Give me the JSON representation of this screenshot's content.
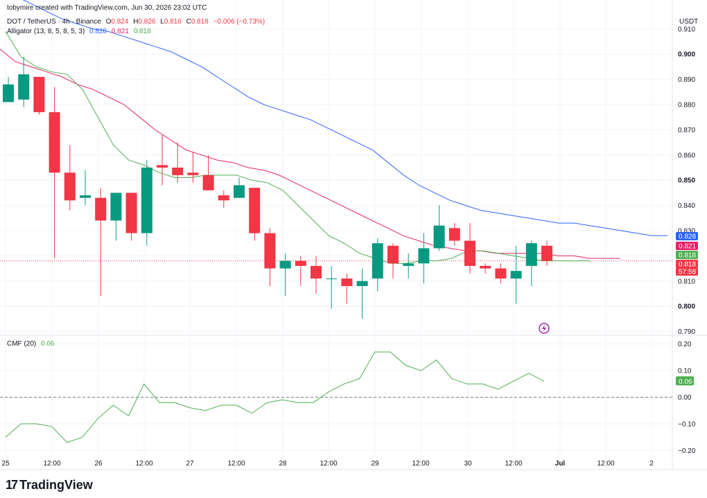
{
  "attribution": "tobymire created with TradingView.com, Jun 30, 2026 23:02 UTC",
  "symbol": "DOT / TetherUS · 4h · Binance",
  "ohlc": {
    "o_label": "O",
    "o": "0.824",
    "h_label": "H",
    "h": "0.826",
    "l_label": "L",
    "l": "0.816",
    "c_label": "C",
    "c": "0.818",
    "chg": "−0.006 (−0.73%)"
  },
  "alligator": {
    "label": "Alligator (13, 8, 5, 8, 5, 3)",
    "jaw": "0.828",
    "teeth": "0.821",
    "lips": "0.818"
  },
  "cmf": {
    "label": "CMF (20)",
    "value": "0.06"
  },
  "currency": "USDT",
  "logo_text": "TradingView",
  "colors": {
    "up": "#089981",
    "down": "#f23645",
    "jaw": "#2962ff",
    "teeth": "#e91e63",
    "lips": "#4caf50",
    "cmf": "#4caf50"
  },
  "chart_data": {
    "type": "candlestick",
    "title": "DOT / TetherUS · 4h · Binance",
    "price_axis": {
      "ylim": [
        0.7885,
        0.916
      ],
      "ticks": [
        "0.790",
        "0.800",
        "0.810",
        "0.820",
        "0.830",
        "0.840",
        "0.850",
        "0.860",
        "0.870",
        "0.880",
        "0.890",
        "0.900",
        "0.910"
      ],
      "bold_ticks": [
        "0.800",
        "0.850",
        "0.900"
      ]
    },
    "x_labels": [
      "25",
      "12:00",
      "26",
      "12:00",
      "27",
      "12:00",
      "28",
      "12:00",
      "29",
      "12:00",
      "30",
      "12:00",
      "Jul",
      "12:00",
      "2"
    ],
    "bold_x_labels": [
      "Jul"
    ],
    "candles": [
      {
        "o": 0.881,
        "h": 0.891,
        "l": 0.881,
        "c": 0.888
      },
      {
        "o": 0.882,
        "h": 0.899,
        "l": 0.879,
        "c": 0.892
      },
      {
        "o": 0.891,
        "h": 0.891,
        "l": 0.876,
        "c": 0.877
      },
      {
        "o": 0.877,
        "h": 0.887,
        "l": 0.819,
        "c": 0.853
      },
      {
        "o": 0.853,
        "h": 0.864,
        "l": 0.838,
        "c": 0.842
      },
      {
        "o": 0.843,
        "h": 0.854,
        "l": 0.84,
        "c": 0.844
      },
      {
        "o": 0.843,
        "h": 0.847,
        "l": 0.804,
        "c": 0.834
      },
      {
        "o": 0.834,
        "h": 0.845,
        "l": 0.826,
        "c": 0.845
      },
      {
        "o": 0.845,
        "h": 0.845,
        "l": 0.826,
        "c": 0.829
      },
      {
        "o": 0.829,
        "h": 0.858,
        "l": 0.824,
        "c": 0.855
      },
      {
        "o": 0.856,
        "h": 0.868,
        "l": 0.848,
        "c": 0.855
      },
      {
        "o": 0.855,
        "h": 0.865,
        "l": 0.849,
        "c": 0.852
      },
      {
        "o": 0.853,
        "h": 0.861,
        "l": 0.849,
        "c": 0.852
      },
      {
        "o": 0.852,
        "h": 0.86,
        "l": 0.846,
        "c": 0.846
      },
      {
        "o": 0.844,
        "h": 0.846,
        "l": 0.839,
        "c": 0.842
      },
      {
        "o": 0.843,
        "h": 0.851,
        "l": 0.843,
        "c": 0.848
      },
      {
        "o": 0.847,
        "h": 0.847,
        "l": 0.826,
        "c": 0.829
      },
      {
        "o": 0.829,
        "h": 0.831,
        "l": 0.808,
        "c": 0.815
      },
      {
        "o": 0.815,
        "h": 0.821,
        "l": 0.804,
        "c": 0.818
      },
      {
        "o": 0.818,
        "h": 0.82,
        "l": 0.808,
        "c": 0.816
      },
      {
        "o": 0.816,
        "h": 0.82,
        "l": 0.805,
        "c": 0.811
      },
      {
        "o": 0.811,
        "h": 0.816,
        "l": 0.799,
        "c": 0.811
      },
      {
        "o": 0.811,
        "h": 0.813,
        "l": 0.801,
        "c": 0.808
      },
      {
        "o": 0.808,
        "h": 0.815,
        "l": 0.795,
        "c": 0.81
      },
      {
        "o": 0.811,
        "h": 0.827,
        "l": 0.806,
        "c": 0.825
      },
      {
        "o": 0.824,
        "h": 0.825,
        "l": 0.811,
        "c": 0.817
      },
      {
        "o": 0.816,
        "h": 0.821,
        "l": 0.811,
        "c": 0.817
      },
      {
        "o": 0.817,
        "h": 0.829,
        "l": 0.809,
        "c": 0.823
      },
      {
        "o": 0.823,
        "h": 0.84,
        "l": 0.822,
        "c": 0.832
      },
      {
        "o": 0.831,
        "h": 0.833,
        "l": 0.824,
        "c": 0.826
      },
      {
        "o": 0.826,
        "h": 0.833,
        "l": 0.813,
        "c": 0.816
      },
      {
        "o": 0.816,
        "h": 0.817,
        "l": 0.813,
        "c": 0.815
      },
      {
        "o": 0.815,
        "h": 0.817,
        "l": 0.809,
        "c": 0.811
      },
      {
        "o": 0.811,
        "h": 0.824,
        "l": 0.801,
        "c": 0.814
      },
      {
        "o": 0.816,
        "h": 0.826,
        "l": 0.808,
        "c": 0.825
      },
      {
        "o": 0.824,
        "h": 0.826,
        "l": 0.816,
        "c": 0.818
      }
    ],
    "series": [
      {
        "name": "Jaw",
        "values": [
          0.927,
          0.923,
          0.92,
          0.917,
          0.914,
          0.912,
          0.91,
          0.909,
          0.907,
          0.905,
          0.903,
          0.901,
          0.898,
          0.895,
          0.891,
          0.887,
          0.883,
          0.88,
          0.878,
          0.876,
          0.874,
          0.871,
          0.868,
          0.865,
          0.862,
          0.857,
          0.852,
          0.848,
          0.845,
          0.842,
          0.84,
          0.838,
          0.837,
          0.836,
          0.835,
          0.834,
          0.833,
          0.833,
          0.832,
          0.831,
          0.83,
          0.829,
          0.828,
          0.828
        ]
      },
      {
        "name": "Teeth",
        "values": [
          0.902,
          0.897,
          0.895,
          0.893,
          0.891,
          0.888,
          0.886,
          0.883,
          0.88,
          0.875,
          0.87,
          0.866,
          0.862,
          0.86,
          0.858,
          0.857,
          0.855,
          0.854,
          0.852,
          0.849,
          0.846,
          0.843,
          0.84,
          0.837,
          0.834,
          0.831,
          0.828,
          0.826,
          0.824,
          0.823,
          0.822,
          0.822,
          0.821,
          0.821,
          0.821,
          0.821,
          0.82,
          0.82,
          0.819,
          0.819,
          0.819
        ]
      },
      {
        "name": "Lips",
        "values": [
          0.909,
          0.899,
          0.895,
          0.893,
          0.892,
          0.886,
          0.875,
          0.864,
          0.858,
          0.856,
          0.853,
          0.851,
          0.851,
          0.852,
          0.852,
          0.852,
          0.85,
          0.849,
          0.846,
          0.84,
          0.834,
          0.828,
          0.825,
          0.821,
          0.819,
          0.817,
          0.817,
          0.818,
          0.818,
          0.819,
          0.822,
          0.822,
          0.821,
          0.82,
          0.819,
          0.818,
          0.818,
          0.818,
          0.818
        ]
      },
      {
        "name": "CMF",
        "values": [
          -0.15,
          -0.1,
          -0.1,
          -0.11,
          -0.17,
          -0.15,
          -0.08,
          -0.03,
          -0.07,
          0.05,
          -0.02,
          -0.02,
          -0.04,
          -0.05,
          -0.03,
          -0.03,
          -0.06,
          -0.02,
          -0.01,
          -0.02,
          -0.02,
          0.02,
          0.05,
          0.07,
          0.17,
          0.17,
          0.12,
          0.1,
          0.14,
          0.07,
          0.05,
          0.05,
          0.03,
          0.06,
          0.09,
          0.06
        ]
      }
    ],
    "cmf_axis": {
      "ylim": [
        -0.225,
        0.225
      ],
      "ticks": [
        "0.20",
        "0.10",
        "0.00",
        "−0.10",
        "−0.20"
      ]
    },
    "price_badges": [
      {
        "label": "0.828",
        "value": 0.828,
        "color": "#2962ff"
      },
      {
        "label": "0.821",
        "value": 0.821,
        "color": "#e91e63"
      },
      {
        "label": "0.818",
        "value": 0.818,
        "color": "#4caf50"
      },
      {
        "label": "0.818",
        "value": 0.818,
        "color": "#f23645"
      },
      {
        "label": "57:58",
        "value": 0.818,
        "color": "#f23645"
      }
    ],
    "cmf_badge": {
      "label": "0.06",
      "value": 0.06,
      "color": "#4caf50"
    },
    "legend": "top-left",
    "grid": true
  }
}
